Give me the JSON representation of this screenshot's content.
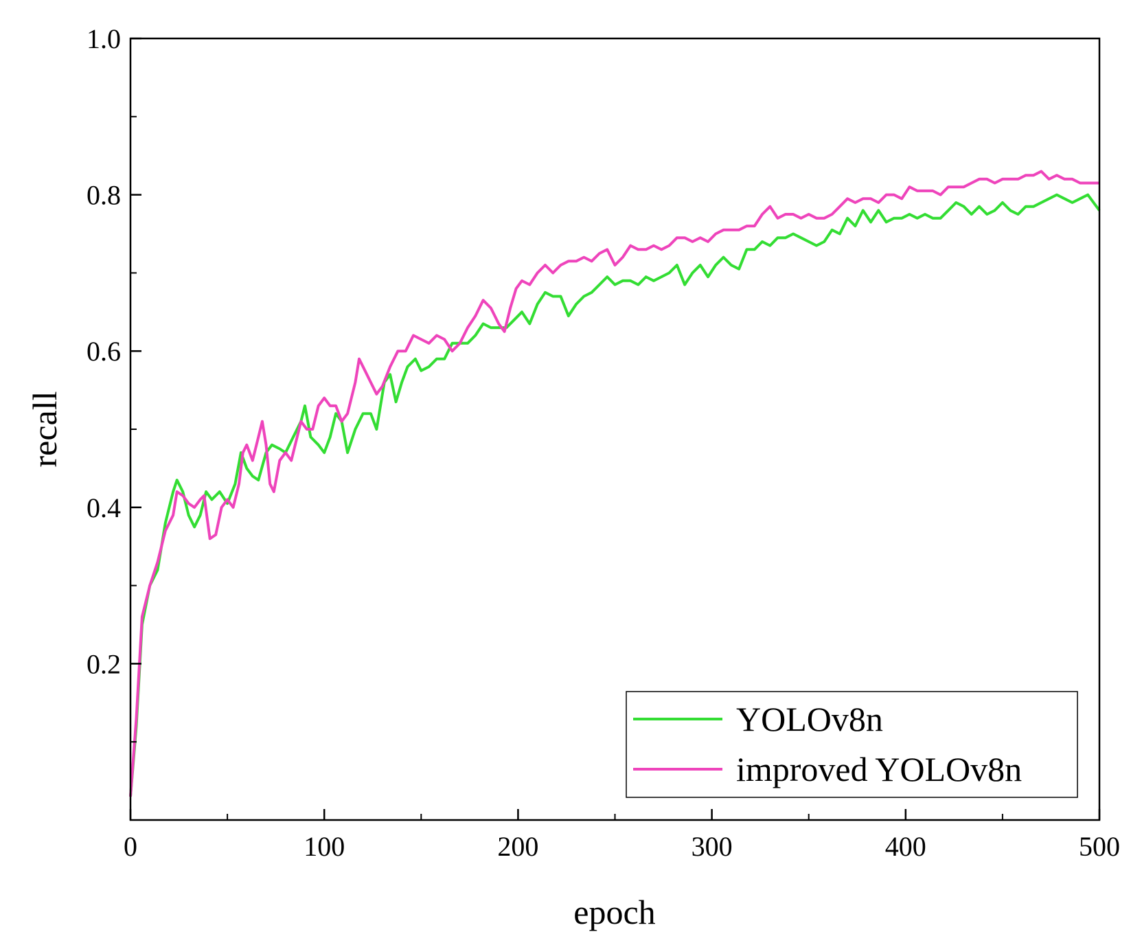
{
  "chart_data": {
    "type": "line",
    "title": "",
    "xlabel": "epoch",
    "ylabel": "recall",
    "xlim": [
      0,
      500
    ],
    "ylim": [
      0,
      1.0
    ],
    "x_ticks": [
      0,
      100,
      200,
      300,
      400,
      500
    ],
    "y_ticks": [
      0.2,
      0.4,
      0.6,
      0.8,
      1.0
    ],
    "x_tick_labels": [
      "0",
      "100",
      "200",
      "300",
      "400",
      "500"
    ],
    "y_tick_labels": [
      "0.2",
      "0.4",
      "0.6",
      "0.8",
      "1.0"
    ],
    "grid": false,
    "legend_position": "bottom-right",
    "series": [
      {
        "name": "YOLOv8n",
        "color": "#33dd33",
        "points": [
          [
            0,
            0.03
          ],
          [
            3,
            0.12
          ],
          [
            6,
            0.25
          ],
          [
            10,
            0.3
          ],
          [
            14,
            0.32
          ],
          [
            18,
            0.38
          ],
          [
            22,
            0.42
          ],
          [
            24,
            0.435
          ],
          [
            27,
            0.42
          ],
          [
            30,
            0.39
          ],
          [
            33,
            0.375
          ],
          [
            36,
            0.39
          ],
          [
            39,
            0.42
          ],
          [
            42,
            0.41
          ],
          [
            46,
            0.42
          ],
          [
            50,
            0.405
          ],
          [
            54,
            0.43
          ],
          [
            57,
            0.47
          ],
          [
            60,
            0.45
          ],
          [
            63,
            0.44
          ],
          [
            66,
            0.435
          ],
          [
            70,
            0.47
          ],
          [
            73,
            0.48
          ],
          [
            77,
            0.475
          ],
          [
            80,
            0.47
          ],
          [
            84,
            0.49
          ],
          [
            88,
            0.51
          ],
          [
            90,
            0.53
          ],
          [
            93,
            0.49
          ],
          [
            97,
            0.48
          ],
          [
            100,
            0.47
          ],
          [
            103,
            0.49
          ],
          [
            106,
            0.52
          ],
          [
            109,
            0.51
          ],
          [
            112,
            0.47
          ],
          [
            116,
            0.5
          ],
          [
            120,
            0.52
          ],
          [
            124,
            0.52
          ],
          [
            127,
            0.5
          ],
          [
            131,
            0.56
          ],
          [
            134,
            0.57
          ],
          [
            137,
            0.535
          ],
          [
            140,
            0.56
          ],
          [
            143,
            0.58
          ],
          [
            147,
            0.59
          ],
          [
            150,
            0.575
          ],
          [
            154,
            0.58
          ],
          [
            158,
            0.59
          ],
          [
            162,
            0.59
          ],
          [
            166,
            0.61
          ],
          [
            170,
            0.61
          ],
          [
            174,
            0.61
          ],
          [
            178,
            0.62
          ],
          [
            182,
            0.635
          ],
          [
            186,
            0.63
          ],
          [
            190,
            0.63
          ],
          [
            194,
            0.63
          ],
          [
            198,
            0.64
          ],
          [
            202,
            0.65
          ],
          [
            206,
            0.635
          ],
          [
            210,
            0.66
          ],
          [
            214,
            0.675
          ],
          [
            218,
            0.67
          ],
          [
            222,
            0.67
          ],
          [
            226,
            0.645
          ],
          [
            230,
            0.66
          ],
          [
            234,
            0.67
          ],
          [
            238,
            0.675
          ],
          [
            242,
            0.685
          ],
          [
            246,
            0.695
          ],
          [
            250,
            0.685
          ],
          [
            254,
            0.69
          ],
          [
            258,
            0.69
          ],
          [
            262,
            0.685
          ],
          [
            266,
            0.695
          ],
          [
            270,
            0.69
          ],
          [
            274,
            0.695
          ],
          [
            278,
            0.7
          ],
          [
            282,
            0.71
          ],
          [
            286,
            0.685
          ],
          [
            290,
            0.7
          ],
          [
            294,
            0.71
          ],
          [
            298,
            0.695
          ],
          [
            302,
            0.71
          ],
          [
            306,
            0.72
          ],
          [
            310,
            0.71
          ],
          [
            314,
            0.705
          ],
          [
            318,
            0.73
          ],
          [
            322,
            0.73
          ],
          [
            326,
            0.74
          ],
          [
            330,
            0.735
          ],
          [
            334,
            0.745
          ],
          [
            338,
            0.745
          ],
          [
            342,
            0.75
          ],
          [
            346,
            0.745
          ],
          [
            350,
            0.74
          ],
          [
            354,
            0.735
          ],
          [
            358,
            0.74
          ],
          [
            362,
            0.755
          ],
          [
            366,
            0.75
          ],
          [
            370,
            0.77
          ],
          [
            374,
            0.76
          ],
          [
            378,
            0.78
          ],
          [
            382,
            0.765
          ],
          [
            386,
            0.78
          ],
          [
            390,
            0.765
          ],
          [
            394,
            0.77
          ],
          [
            398,
            0.77
          ],
          [
            402,
            0.775
          ],
          [
            406,
            0.77
          ],
          [
            410,
            0.775
          ],
          [
            414,
            0.77
          ],
          [
            418,
            0.77
          ],
          [
            422,
            0.78
          ],
          [
            426,
            0.79
          ],
          [
            430,
            0.785
          ],
          [
            434,
            0.775
          ],
          [
            438,
            0.785
          ],
          [
            442,
            0.775
          ],
          [
            446,
            0.78
          ],
          [
            450,
            0.79
          ],
          [
            454,
            0.78
          ],
          [
            458,
            0.775
          ],
          [
            462,
            0.785
          ],
          [
            466,
            0.785
          ],
          [
            470,
            0.79
          ],
          [
            474,
            0.795
          ],
          [
            478,
            0.8
          ],
          [
            482,
            0.795
          ],
          [
            486,
            0.79
          ],
          [
            490,
            0.795
          ],
          [
            494,
            0.8
          ],
          [
            497,
            0.79
          ],
          [
            500,
            0.78
          ]
        ]
      },
      {
        "name": "improved YOLOv8n",
        "color": "#ee44bb",
        "points": [
          [
            0,
            0.03
          ],
          [
            3,
            0.13
          ],
          [
            6,
            0.26
          ],
          [
            10,
            0.3
          ],
          [
            14,
            0.33
          ],
          [
            18,
            0.37
          ],
          [
            22,
            0.39
          ],
          [
            24,
            0.42
          ],
          [
            27,
            0.415
          ],
          [
            30,
            0.405
          ],
          [
            33,
            0.4
          ],
          [
            36,
            0.41
          ],
          [
            38,
            0.415
          ],
          [
            41,
            0.36
          ],
          [
            44,
            0.365
          ],
          [
            47,
            0.4
          ],
          [
            50,
            0.41
          ],
          [
            53,
            0.4
          ],
          [
            56,
            0.43
          ],
          [
            58,
            0.47
          ],
          [
            60,
            0.48
          ],
          [
            63,
            0.46
          ],
          [
            66,
            0.49
          ],
          [
            68,
            0.51
          ],
          [
            70,
            0.48
          ],
          [
            72,
            0.43
          ],
          [
            74,
            0.42
          ],
          [
            77,
            0.46
          ],
          [
            80,
            0.47
          ],
          [
            83,
            0.46
          ],
          [
            86,
            0.49
          ],
          [
            88,
            0.51
          ],
          [
            91,
            0.5
          ],
          [
            94,
            0.5
          ],
          [
            97,
            0.53
          ],
          [
            100,
            0.54
          ],
          [
            103,
            0.53
          ],
          [
            106,
            0.53
          ],
          [
            109,
            0.51
          ],
          [
            112,
            0.52
          ],
          [
            116,
            0.56
          ],
          [
            118,
            0.59
          ],
          [
            121,
            0.575
          ],
          [
            124,
            0.56
          ],
          [
            127,
            0.545
          ],
          [
            130,
            0.555
          ],
          [
            134,
            0.58
          ],
          [
            138,
            0.6
          ],
          [
            142,
            0.6
          ],
          [
            146,
            0.62
          ],
          [
            150,
            0.615
          ],
          [
            154,
            0.61
          ],
          [
            158,
            0.62
          ],
          [
            162,
            0.615
          ],
          [
            166,
            0.6
          ],
          [
            170,
            0.61
          ],
          [
            174,
            0.63
          ],
          [
            178,
            0.645
          ],
          [
            182,
            0.665
          ],
          [
            186,
            0.655
          ],
          [
            190,
            0.635
          ],
          [
            193,
            0.625
          ],
          [
            196,
            0.655
          ],
          [
            199,
            0.68
          ],
          [
            202,
            0.69
          ],
          [
            206,
            0.685
          ],
          [
            210,
            0.7
          ],
          [
            214,
            0.71
          ],
          [
            218,
            0.7
          ],
          [
            222,
            0.71
          ],
          [
            226,
            0.715
          ],
          [
            230,
            0.715
          ],
          [
            234,
            0.72
          ],
          [
            238,
            0.715
          ],
          [
            242,
            0.725
          ],
          [
            246,
            0.73
          ],
          [
            250,
            0.71
          ],
          [
            254,
            0.72
          ],
          [
            258,
            0.735
          ],
          [
            262,
            0.73
          ],
          [
            266,
            0.73
          ],
          [
            270,
            0.735
          ],
          [
            274,
            0.73
          ],
          [
            278,
            0.735
          ],
          [
            282,
            0.745
          ],
          [
            286,
            0.745
          ],
          [
            290,
            0.74
          ],
          [
            294,
            0.745
          ],
          [
            298,
            0.74
          ],
          [
            302,
            0.75
          ],
          [
            306,
            0.755
          ],
          [
            310,
            0.755
          ],
          [
            314,
            0.755
          ],
          [
            318,
            0.76
          ],
          [
            322,
            0.76
          ],
          [
            326,
            0.775
          ],
          [
            330,
            0.785
          ],
          [
            334,
            0.77
          ],
          [
            338,
            0.775
          ],
          [
            342,
            0.775
          ],
          [
            346,
            0.77
          ],
          [
            350,
            0.775
          ],
          [
            354,
            0.77
          ],
          [
            358,
            0.77
          ],
          [
            362,
            0.775
          ],
          [
            366,
            0.785
          ],
          [
            370,
            0.795
          ],
          [
            374,
            0.79
          ],
          [
            378,
            0.795
          ],
          [
            382,
            0.795
          ],
          [
            386,
            0.79
          ],
          [
            390,
            0.8
          ],
          [
            394,
            0.8
          ],
          [
            398,
            0.795
          ],
          [
            402,
            0.81
          ],
          [
            406,
            0.805
          ],
          [
            410,
            0.805
          ],
          [
            414,
            0.805
          ],
          [
            418,
            0.8
          ],
          [
            422,
            0.81
          ],
          [
            426,
            0.81
          ],
          [
            430,
            0.81
          ],
          [
            434,
            0.815
          ],
          [
            438,
            0.82
          ],
          [
            442,
            0.82
          ],
          [
            446,
            0.815
          ],
          [
            450,
            0.82
          ],
          [
            454,
            0.82
          ],
          [
            458,
            0.82
          ],
          [
            462,
            0.825
          ],
          [
            466,
            0.825
          ],
          [
            470,
            0.83
          ],
          [
            474,
            0.82
          ],
          [
            478,
            0.825
          ],
          [
            482,
            0.82
          ],
          [
            486,
            0.82
          ],
          [
            490,
            0.815
          ],
          [
            494,
            0.815
          ],
          [
            497,
            0.815
          ],
          [
            500,
            0.815
          ]
        ]
      }
    ]
  }
}
